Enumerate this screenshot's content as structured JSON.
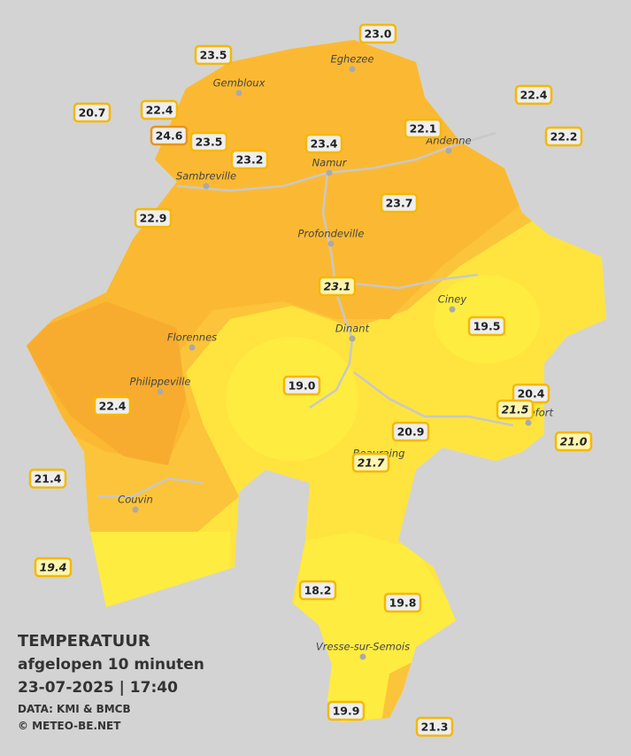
{
  "legend": {
    "title": "TEMPERATUUR",
    "subtitle": "afgelopen 10 minuten",
    "datetime": "23-07-2025  |  17:40",
    "source": "DATA: KMI & BMCB",
    "copyright": "© METEO-BE.NET"
  },
  "cities": [
    "Eghezee",
    "Gembloux",
    "Andenne",
    "Namur",
    "Sambreville",
    "Profondeville",
    "Ciney",
    "Dinant",
    "Florennes",
    "Philippeville",
    "Rochefort",
    "Beauraing",
    "Couvin",
    "Vresse-sur-Semois"
  ],
  "stations": [
    {
      "label": "23.0"
    },
    {
      "label": "23.5"
    },
    {
      "label": "22.4"
    },
    {
      "label": "20.7"
    },
    {
      "label": "22.4"
    },
    {
      "label": "24.6"
    },
    {
      "label": "23.5"
    },
    {
      "label": "22.1"
    },
    {
      "label": "23.4"
    },
    {
      "label": "22.2"
    },
    {
      "label": "23.2"
    },
    {
      "label": "23.7"
    },
    {
      "label": "22.9"
    },
    {
      "label": "23.1",
      "italic": true
    },
    {
      "label": "19.5"
    },
    {
      "label": "19.0"
    },
    {
      "label": "20.4"
    },
    {
      "label": "22.4"
    },
    {
      "label": "20.9"
    },
    {
      "label": "21.7",
      "italic": true
    },
    {
      "label": "21.0",
      "italic": true
    },
    {
      "label": "21.4"
    },
    {
      "label": "19.4",
      "italic": true
    },
    {
      "label": "18.2"
    },
    {
      "label": "19.8"
    },
    {
      "label": "19.9"
    },
    {
      "label": "21.3"
    },
    {
      "label": "21.5",
      "italic": true
    }
  ]
}
